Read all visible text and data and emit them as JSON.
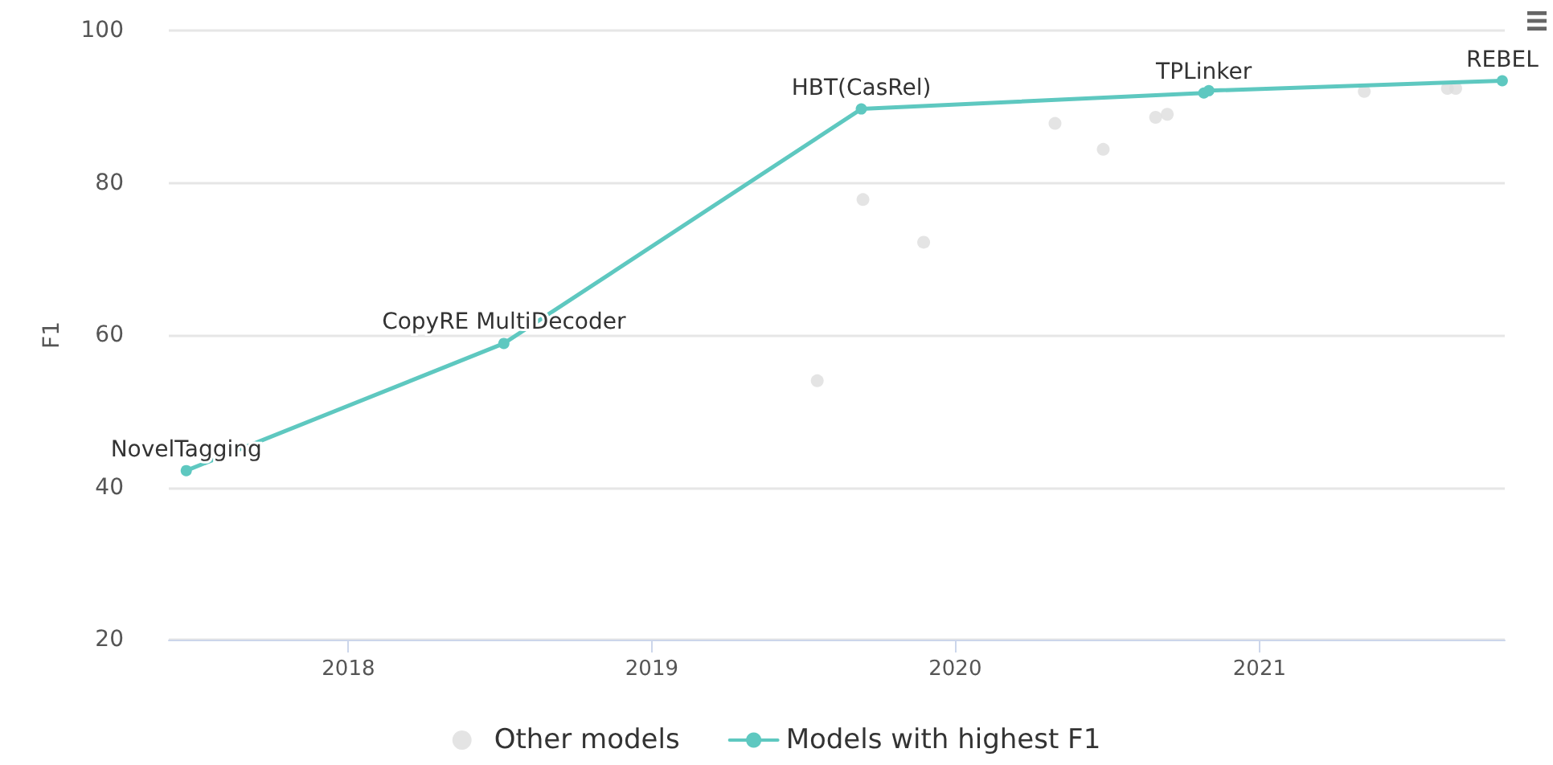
{
  "chart_data": {
    "type": "scatter",
    "ylabel": "F1",
    "xlim": [
      "2017-05-30",
      "2021-10-23"
    ],
    "xticks": [
      {
        "value": "2018-01-01",
        "label": "2018"
      },
      {
        "value": "2019-01-01",
        "label": "2019"
      },
      {
        "value": "2020-01-01",
        "label": "2020"
      },
      {
        "value": "2021-01-01",
        "label": "2021"
      }
    ],
    "ylim": [
      20,
      100
    ],
    "yticks": [
      20,
      40,
      60,
      80,
      100
    ],
    "grid": "y",
    "legend": "bottom",
    "marker": "circle",
    "series": [
      {
        "name": "Other models",
        "color": "#dddddd",
        "x": [
          "2019-07-19",
          "2019-09-12",
          "2019-11-24",
          "2020-04-30",
          "2020-06-27",
          "2020-08-29",
          "2020-09-12",
          "2021-05-07",
          "2021-08-15",
          "2021-08-25"
        ],
        "values": [
          54.0,
          77.8,
          72.2,
          87.8,
          84.4,
          88.6,
          89.0,
          92.0,
          92.4,
          92.4
        ]
      },
      {
        "name": "Models with highest F1",
        "type": "line",
        "color": "#5ec8c0",
        "line_style": "solid",
        "x": [
          "2017-06-20",
          "2018-07-07",
          "2019-09-10",
          "2020-10-26",
          "2020-11-01",
          "2021-10-20"
        ],
        "values": [
          42.2,
          58.9,
          89.7,
          91.8,
          92.1,
          93.4
        ]
      }
    ],
    "annotations": [
      {
        "text": "NovelTagging",
        "x": "2017-06-20",
        "y": 42.2
      },
      {
        "text": "CopyRE MultiDecoder",
        "x": "2018-07-07",
        "y": 58.9
      },
      {
        "text": "HBT(CasRel)",
        "x": "2019-09-10",
        "y": 89.7
      },
      {
        "text": "TPLinker",
        "x": "2020-10-26",
        "y": 91.8
      },
      {
        "text": "REBEL",
        "x": "2021-10-20",
        "y": 93.4
      }
    ]
  }
}
